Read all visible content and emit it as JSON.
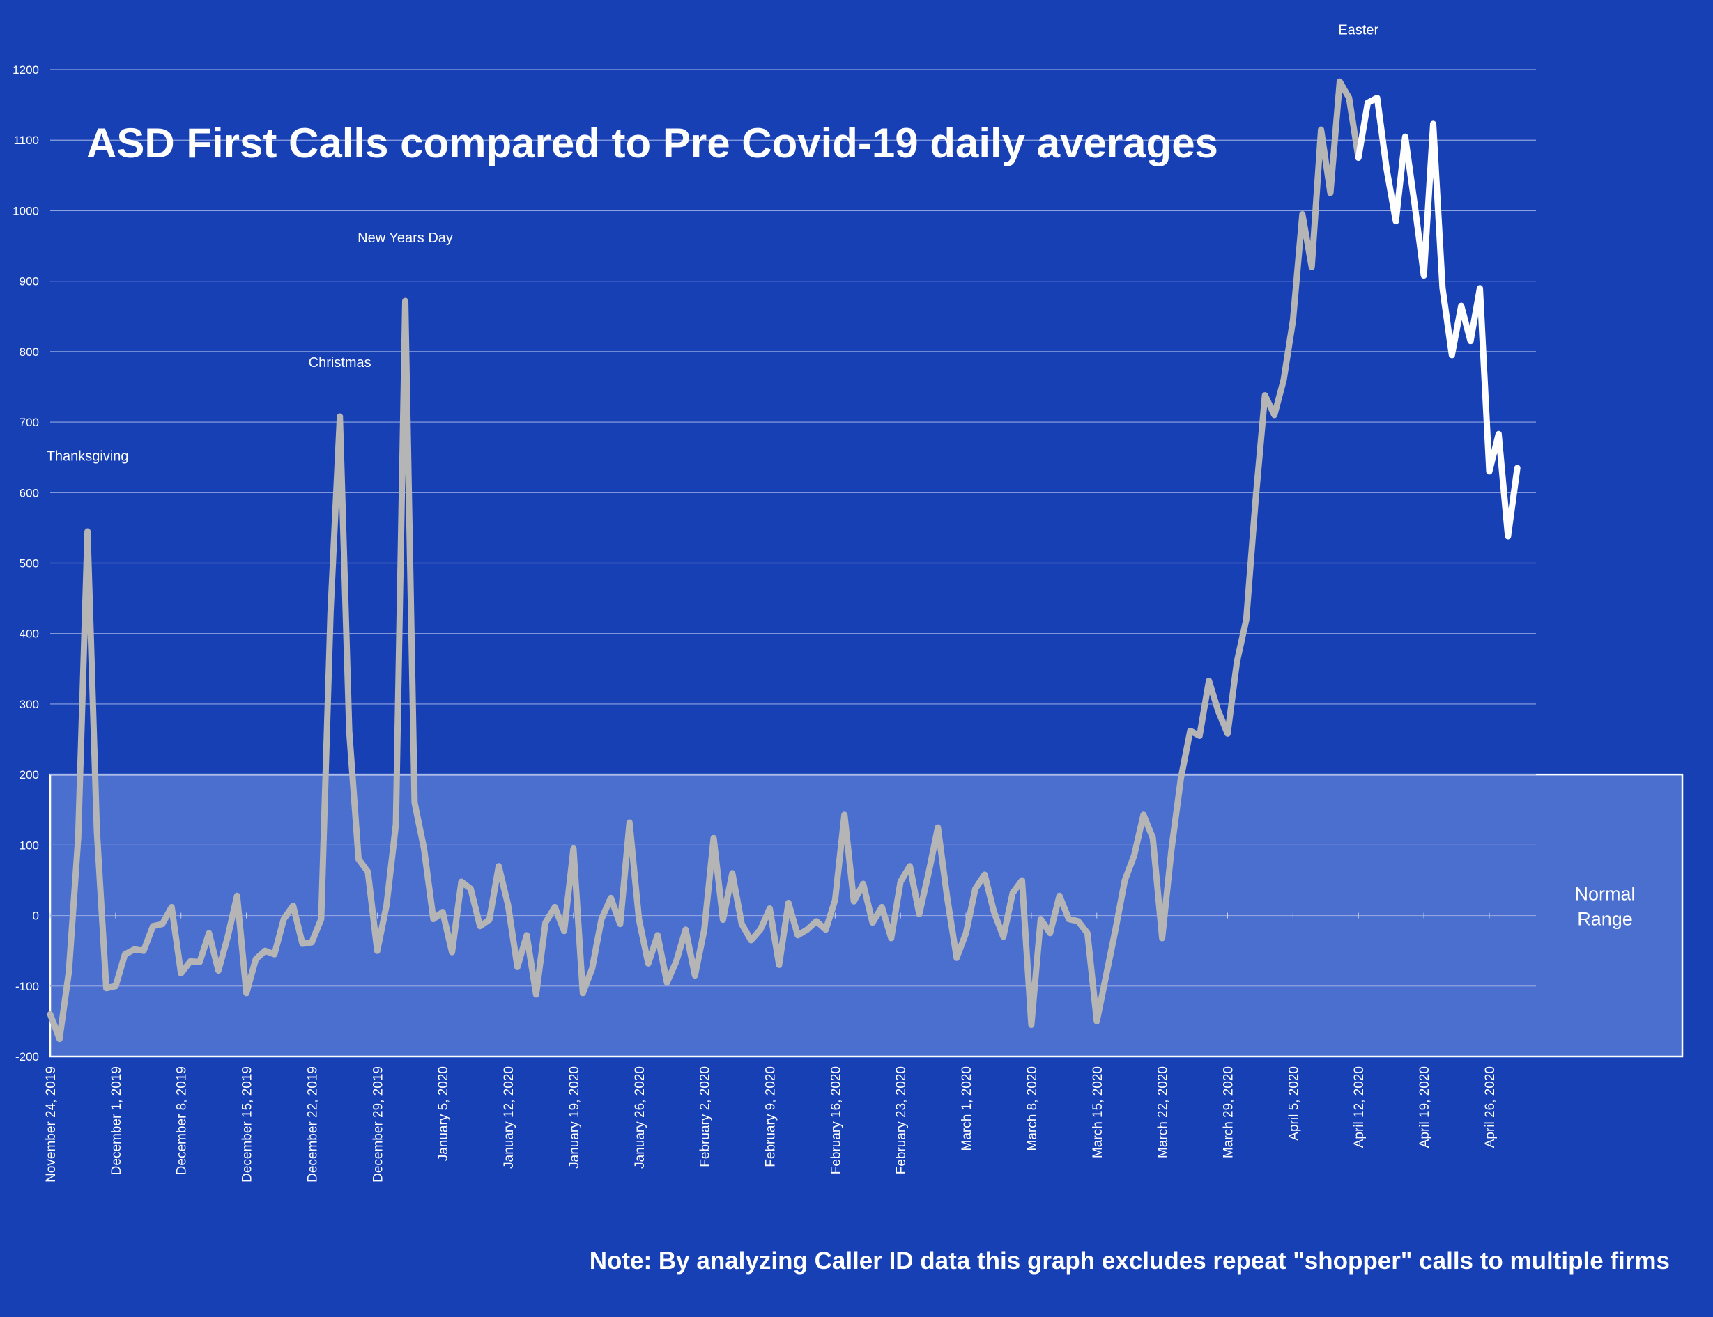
{
  "chart_data": {
    "type": "line",
    "title": "ASD First Calls compared to Pre Covid-19 daily averages",
    "xlabel": "",
    "ylabel": "",
    "ylim": [
      -200,
      1200
    ],
    "yticks": [
      -200,
      -100,
      0,
      100,
      200,
      300,
      400,
      500,
      600,
      700,
      800,
      900,
      1000,
      1100,
      1200
    ],
    "x_start": "2019-11-24",
    "x_end": "2020-05-01",
    "xticks": [
      {
        "date": "2019-11-24",
        "label": "November 24, 2019"
      },
      {
        "date": "2019-12-01",
        "label": "December 1, 2019"
      },
      {
        "date": "2019-12-08",
        "label": "December 8, 2019"
      },
      {
        "date": "2019-12-15",
        "label": "December 15, 2019"
      },
      {
        "date": "2019-12-22",
        "label": "December 22, 2019"
      },
      {
        "date": "2019-12-29",
        "label": "December 29, 2019"
      },
      {
        "date": "2020-01-05",
        "label": "January 5, 2020"
      },
      {
        "date": "2020-01-12",
        "label": "January 12, 2020"
      },
      {
        "date": "2020-01-19",
        "label": "January 19, 2020"
      },
      {
        "date": "2020-01-26",
        "label": "January 26, 2020"
      },
      {
        "date": "2020-02-02",
        "label": "February 2, 2020"
      },
      {
        "date": "2020-02-09",
        "label": "February 9, 2020"
      },
      {
        "date": "2020-02-16",
        "label": "February 16, 2020"
      },
      {
        "date": "2020-02-23",
        "label": "February 23, 2020"
      },
      {
        "date": "2020-03-01",
        "label": "March 1, 2020"
      },
      {
        "date": "2020-03-08",
        "label": "March 8, 2020"
      },
      {
        "date": "2020-03-15",
        "label": "March 15, 2020"
      },
      {
        "date": "2020-03-22",
        "label": "March 22, 2020"
      },
      {
        "date": "2020-03-29",
        "label": "March 29, 2020"
      },
      {
        "date": "2020-04-05",
        "label": "April 5, 2020"
      },
      {
        "date": "2020-04-12",
        "label": "April 12, 2020"
      },
      {
        "date": "2020-04-19",
        "label": "April 19, 2020"
      },
      {
        "date": "2020-04-26",
        "label": "April 26, 2020"
      }
    ],
    "grid": true,
    "legend": "none",
    "band": {
      "from": -200,
      "to": 200,
      "label_line1": "Normal",
      "label_line2": "Range"
    },
    "annotations": [
      {
        "text": "Thanksgiving",
        "date": "2019-11-28",
        "value": 645
      },
      {
        "text": "Christmas",
        "date": "2019-12-25",
        "value": 778
      },
      {
        "text": "New Years Day",
        "date": "2020-01-01",
        "value": 955
      },
      {
        "text": "Easter",
        "date": "2020-04-12",
        "value": 1250
      }
    ],
    "note": "Note: By analyzing Caller ID data this graph excludes repeat \"shopper\" calls to multiple firms",
    "highlight_from": "2020-04-13",
    "colors": {
      "background": "#1740b5",
      "series_main": "#b5b5b5",
      "series_recent": "#ffffff",
      "band_fill": "#4a6fcf",
      "grid": "#8fa3e0"
    },
    "series": [
      {
        "values": [
          {
            "date": "2019-11-24",
            "y": -140
          },
          {
            "date": "2019-11-25",
            "y": -175
          },
          {
            "date": "2019-11-26",
            "y": -80
          },
          {
            "date": "2019-11-27",
            "y": 110
          },
          {
            "date": "2019-11-28",
            "y": 545
          },
          {
            "date": "2019-11-29",
            "y": 120
          },
          {
            "date": "2019-11-30",
            "y": -103
          },
          {
            "date": "2019-12-01",
            "y": -100
          },
          {
            "date": "2019-12-02",
            "y": -55
          },
          {
            "date": "2019-12-03",
            "y": -48
          },
          {
            "date": "2019-12-04",
            "y": -50
          },
          {
            "date": "2019-12-05",
            "y": -15
          },
          {
            "date": "2019-12-06",
            "y": -12
          },
          {
            "date": "2019-12-07",
            "y": 12
          },
          {
            "date": "2019-12-08",
            "y": -82
          },
          {
            "date": "2019-12-09",
            "y": -65
          },
          {
            "date": "2019-12-10",
            "y": -66
          },
          {
            "date": "2019-12-11",
            "y": -25
          },
          {
            "date": "2019-12-12",
            "y": -78
          },
          {
            "date": "2019-12-13",
            "y": -30
          },
          {
            "date": "2019-12-14",
            "y": 28
          },
          {
            "date": "2019-12-15",
            "y": -110
          },
          {
            "date": "2019-12-16",
            "y": -62
          },
          {
            "date": "2019-12-17",
            "y": -50
          },
          {
            "date": "2019-12-18",
            "y": -55
          },
          {
            "date": "2019-12-19",
            "y": -5
          },
          {
            "date": "2019-12-20",
            "y": 14
          },
          {
            "date": "2019-12-21",
            "y": -40
          },
          {
            "date": "2019-12-22",
            "y": -38
          },
          {
            "date": "2019-12-23",
            "y": -5
          },
          {
            "date": "2019-12-24",
            "y": 430
          },
          {
            "date": "2019-12-25",
            "y": 708
          },
          {
            "date": "2019-12-26",
            "y": 262
          },
          {
            "date": "2019-12-27",
            "y": 80
          },
          {
            "date": "2019-12-28",
            "y": 62
          },
          {
            "date": "2019-12-29",
            "y": -50
          },
          {
            "date": "2019-12-30",
            "y": 15
          },
          {
            "date": "2019-12-31",
            "y": 130
          },
          {
            "date": "2020-01-01",
            "y": 872
          },
          {
            "date": "2020-01-02",
            "y": 160
          },
          {
            "date": "2020-01-03",
            "y": 95
          },
          {
            "date": "2020-01-04",
            "y": -5
          },
          {
            "date": "2020-01-05",
            "y": 5
          },
          {
            "date": "2020-01-06",
            "y": -52
          },
          {
            "date": "2020-01-07",
            "y": 48
          },
          {
            "date": "2020-01-08",
            "y": 38
          },
          {
            "date": "2020-01-09",
            "y": -15
          },
          {
            "date": "2020-01-10",
            "y": -6
          },
          {
            "date": "2020-01-11",
            "y": 70
          },
          {
            "date": "2020-01-12",
            "y": 15
          },
          {
            "date": "2020-01-13",
            "y": -73
          },
          {
            "date": "2020-01-14",
            "y": -28
          },
          {
            "date": "2020-01-15",
            "y": -112
          },
          {
            "date": "2020-01-16",
            "y": -10
          },
          {
            "date": "2020-01-17",
            "y": 12
          },
          {
            "date": "2020-01-18",
            "y": -22
          },
          {
            "date": "2020-01-19",
            "y": 95
          },
          {
            "date": "2020-01-20",
            "y": -110
          },
          {
            "date": "2020-01-21",
            "y": -75
          },
          {
            "date": "2020-01-22",
            "y": -5
          },
          {
            "date": "2020-01-23",
            "y": 25
          },
          {
            "date": "2020-01-24",
            "y": -12
          },
          {
            "date": "2020-01-25",
            "y": 132
          },
          {
            "date": "2020-01-26",
            "y": -5
          },
          {
            "date": "2020-01-27",
            "y": -68
          },
          {
            "date": "2020-01-28",
            "y": -28
          },
          {
            "date": "2020-01-29",
            "y": -95
          },
          {
            "date": "2020-01-30",
            "y": -65
          },
          {
            "date": "2020-01-31",
            "y": -20
          },
          {
            "date": "2020-02-01",
            "y": -85
          },
          {
            "date": "2020-02-02",
            "y": -20
          },
          {
            "date": "2020-02-03",
            "y": 110
          },
          {
            "date": "2020-02-04",
            "y": -6
          },
          {
            "date": "2020-02-05",
            "y": 60
          },
          {
            "date": "2020-02-06",
            "y": -12
          },
          {
            "date": "2020-02-07",
            "y": -35
          },
          {
            "date": "2020-02-08",
            "y": -20
          },
          {
            "date": "2020-02-09",
            "y": 10
          },
          {
            "date": "2020-02-10",
            "y": -70
          },
          {
            "date": "2020-02-11",
            "y": 18
          },
          {
            "date": "2020-02-12",
            "y": -28
          },
          {
            "date": "2020-02-13",
            "y": -20
          },
          {
            "date": "2020-02-14",
            "y": -8
          },
          {
            "date": "2020-02-15",
            "y": -20
          },
          {
            "date": "2020-02-16",
            "y": 22
          },
          {
            "date": "2020-02-17",
            "y": 143
          },
          {
            "date": "2020-02-18",
            "y": 20
          },
          {
            "date": "2020-02-19",
            "y": 45
          },
          {
            "date": "2020-02-20",
            "y": -10
          },
          {
            "date": "2020-02-21",
            "y": 12
          },
          {
            "date": "2020-02-22",
            "y": -32
          },
          {
            "date": "2020-02-23",
            "y": 48
          },
          {
            "date": "2020-02-24",
            "y": 70
          },
          {
            "date": "2020-02-25",
            "y": 2
          },
          {
            "date": "2020-02-26",
            "y": 60
          },
          {
            "date": "2020-02-27",
            "y": 125
          },
          {
            "date": "2020-02-28",
            "y": 25
          },
          {
            "date": "2020-02-29",
            "y": -60
          },
          {
            "date": "2020-03-01",
            "y": -25
          },
          {
            "date": "2020-03-02",
            "y": 38
          },
          {
            "date": "2020-03-03",
            "y": 58
          },
          {
            "date": "2020-03-04",
            "y": 5
          },
          {
            "date": "2020-03-05",
            "y": -30
          },
          {
            "date": "2020-03-06",
            "y": 32
          },
          {
            "date": "2020-03-07",
            "y": 50
          },
          {
            "date": "2020-03-08",
            "y": -155
          },
          {
            "date": "2020-03-09",
            "y": -5
          },
          {
            "date": "2020-03-10",
            "y": -25
          },
          {
            "date": "2020-03-11",
            "y": 28
          },
          {
            "date": "2020-03-12",
            "y": -5
          },
          {
            "date": "2020-03-13",
            "y": -8
          },
          {
            "date": "2020-03-14",
            "y": -25
          },
          {
            "date": "2020-03-15",
            "y": -150
          },
          {
            "date": "2020-03-16",
            "y": -85
          },
          {
            "date": "2020-03-17",
            "y": -20
          },
          {
            "date": "2020-03-18",
            "y": 50
          },
          {
            "date": "2020-03-19",
            "y": 85
          },
          {
            "date": "2020-03-20",
            "y": 143
          },
          {
            "date": "2020-03-21",
            "y": 110
          },
          {
            "date": "2020-03-22",
            "y": -32
          },
          {
            "date": "2020-03-23",
            "y": 95
          },
          {
            "date": "2020-03-24",
            "y": 195
          },
          {
            "date": "2020-03-25",
            "y": 262
          },
          {
            "date": "2020-03-26",
            "y": 255
          },
          {
            "date": "2020-03-27",
            "y": 333
          },
          {
            "date": "2020-03-28",
            "y": 290
          },
          {
            "date": "2020-03-29",
            "y": 258
          },
          {
            "date": "2020-03-30",
            "y": 360
          },
          {
            "date": "2020-03-31",
            "y": 420
          },
          {
            "date": "2020-04-01",
            "y": 590
          },
          {
            "date": "2020-04-02",
            "y": 738
          },
          {
            "date": "2020-04-03",
            "y": 710
          },
          {
            "date": "2020-04-04",
            "y": 760
          },
          {
            "date": "2020-04-05",
            "y": 845
          },
          {
            "date": "2020-04-06",
            "y": 995
          },
          {
            "date": "2020-04-07",
            "y": 920
          },
          {
            "date": "2020-04-08",
            "y": 1115
          },
          {
            "date": "2020-04-09",
            "y": 1025
          },
          {
            "date": "2020-04-10",
            "y": 1183
          },
          {
            "date": "2020-04-11",
            "y": 1160
          },
          {
            "date": "2020-04-12",
            "y": 1075
          },
          {
            "date": "2020-04-13",
            "y": 1153
          },
          {
            "date": "2020-04-14",
            "y": 1160
          },
          {
            "date": "2020-04-15",
            "y": 1060
          },
          {
            "date": "2020-04-16",
            "y": 985
          },
          {
            "date": "2020-04-17",
            "y": 1105
          },
          {
            "date": "2020-04-18",
            "y": 1010
          },
          {
            "date": "2020-04-19",
            "y": 908
          },
          {
            "date": "2020-04-20",
            "y": 1123
          },
          {
            "date": "2020-04-21",
            "y": 890
          },
          {
            "date": "2020-04-22",
            "y": 795
          },
          {
            "date": "2020-04-23",
            "y": 865
          },
          {
            "date": "2020-04-24",
            "y": 815
          },
          {
            "date": "2020-04-25",
            "y": 890
          },
          {
            "date": "2020-04-26",
            "y": 630
          },
          {
            "date": "2020-04-27",
            "y": 683
          },
          {
            "date": "2020-04-28",
            "y": 538
          },
          {
            "date": "2020-04-29",
            "y": 635
          }
        ]
      }
    ]
  }
}
